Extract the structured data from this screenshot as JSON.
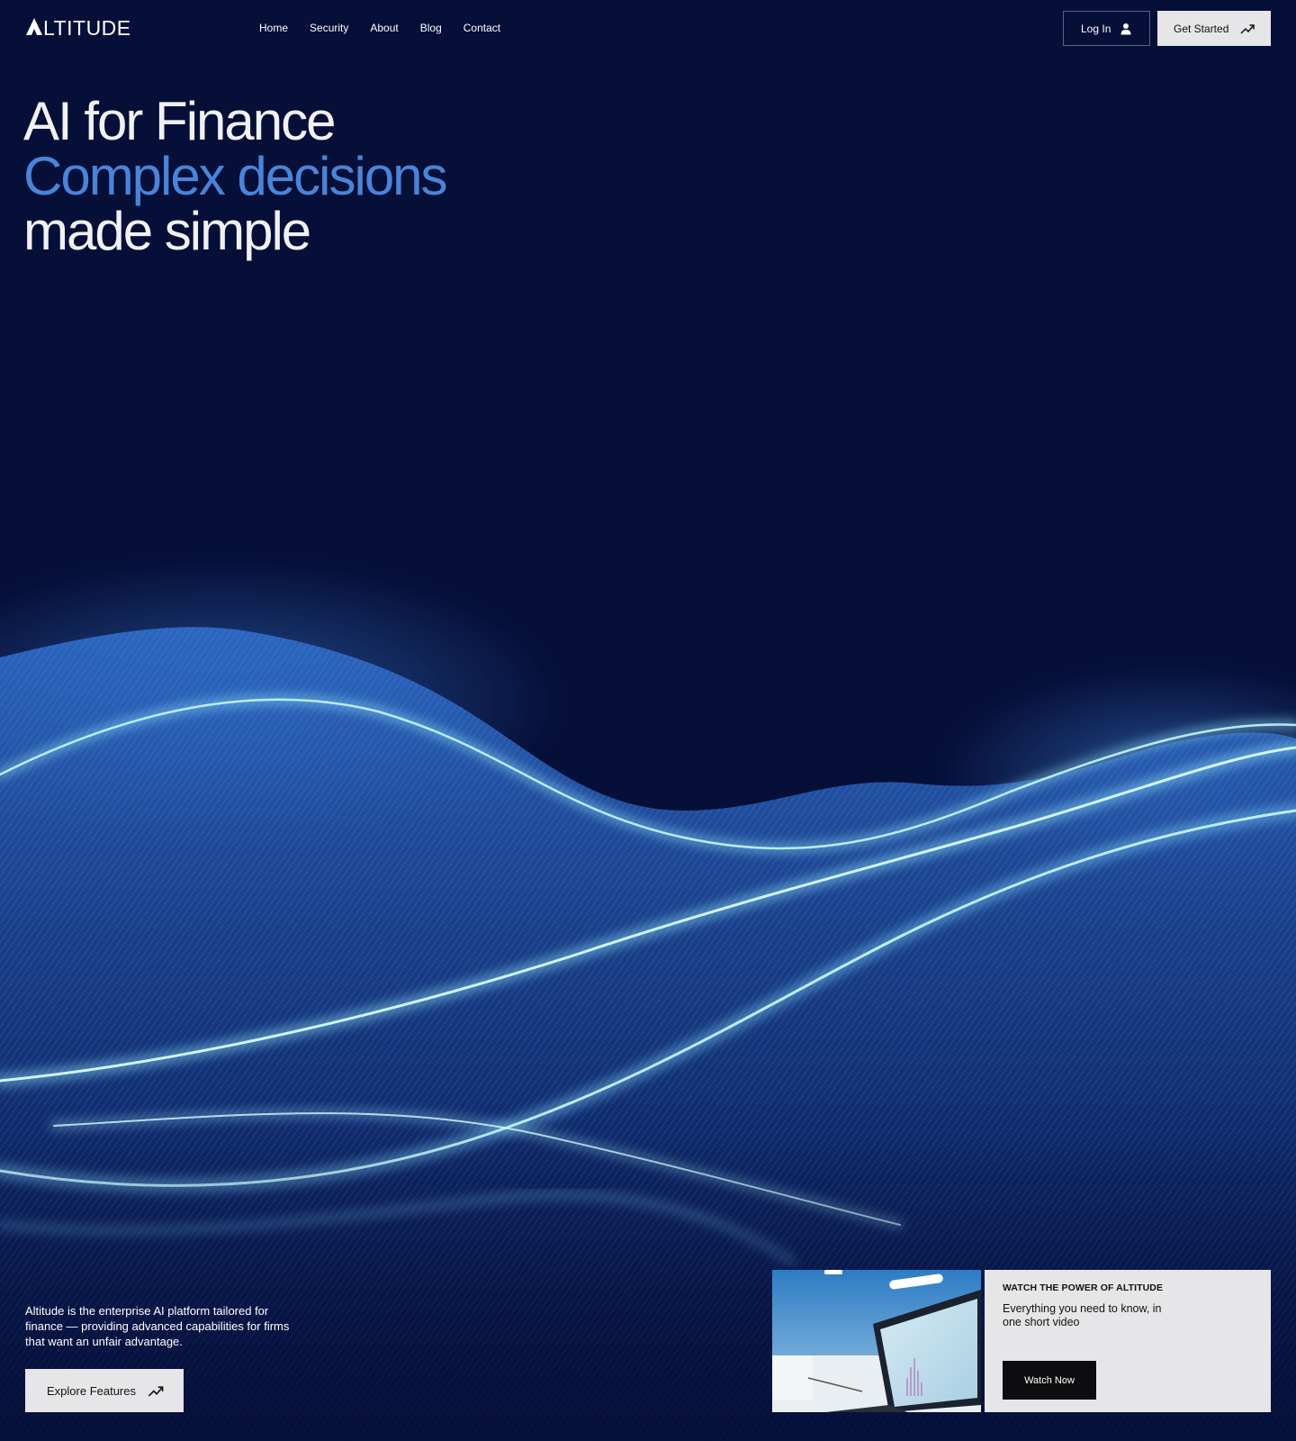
{
  "header": {
    "logo_text": "LTITUDE",
    "nav": [
      "Home",
      "Security",
      "About",
      "Blog",
      "Contact"
    ],
    "login_label": "Log In",
    "get_started_label": "Get Started"
  },
  "hero": {
    "line1": "AI for Finance",
    "line2": "Complex decisions",
    "line3": "made simple"
  },
  "intro": {
    "text": "Altitude is the enterprise AI platform tailored for finance — providing advanced capabilities for firms that want an unfair advantage.",
    "cta_label": "Explore Features"
  },
  "video": {
    "eyebrow": "WATCH THE POWER OF ALTITUDE",
    "description": "Everything you need to know, in one short video",
    "cta_label": "Watch Now"
  },
  "colors": {
    "background": "#050f38",
    "accent": "#4a84d8",
    "button_light": "#e6e6e8",
    "button_dark": "#0d0d10"
  },
  "icons": {
    "login": "user-icon",
    "get_started": "trend-up-arrow-icon",
    "explore": "trend-up-arrow-icon"
  }
}
